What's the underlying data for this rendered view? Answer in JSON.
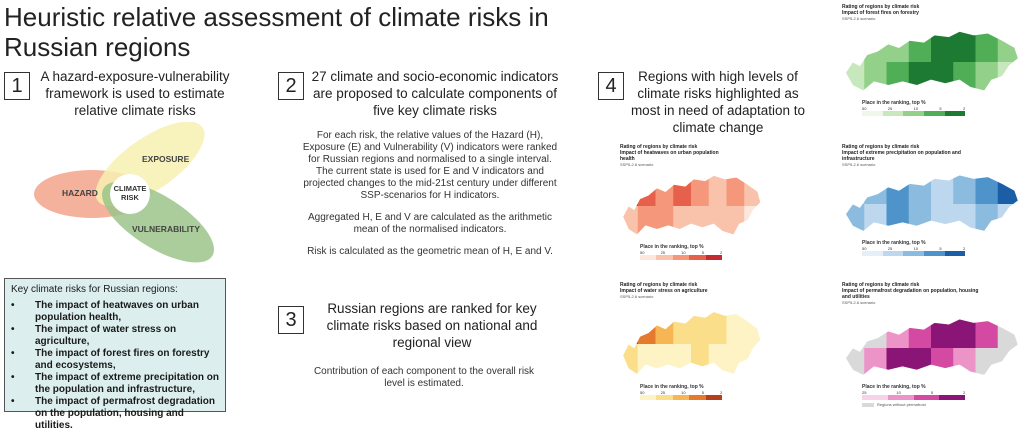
{
  "title": "Heuristic relative assessment of climate risks in Russian regions",
  "steps": [
    {
      "number": "1",
      "heading": "A hazard-exposure-vulnerability framework is used to estimate relative climate risks"
    },
    {
      "number": "2",
      "heading": "27 climate and socio-economic indicators are proposed to calculate components of five key climate risks"
    },
    {
      "number": "3",
      "heading": "Russian regions are ranked for key climate risks based on national and regional view"
    },
    {
      "number": "4",
      "heading": "Regions with high levels of climate risks highlighted as most in need of adaptation to climate change"
    }
  ],
  "step2_paragraphs": [
    "For each risk, the relative values of the Hazard (H), Exposure (E) and Vulnerability (V) indicators were ranked for Russian regions and normalised to a single interval.",
    "The current state is used for E and V indicators and projected changes to the mid-21st century under different SSP-scenarios for H indicators.",
    "Aggregated H, E and V are calculated as the arithmetic mean of the normalised indicators.",
    "Risk is calculated as the geometric mean of H, E and V."
  ],
  "step3_text": "Contribution of each component to the overall risk level is estimated.",
  "venn": {
    "hazard": "HAZARD",
    "exposure": "EXPOSURE",
    "vulnerability": "VULNERABILITY",
    "center": "CLIMATE RISK"
  },
  "key_risks": {
    "heading": "Key climate risks for Russian regions:",
    "items": [
      "The impact of heatwaves on urban population health,",
      "The impact of water stress on agriculture,",
      "The impact of forest fires on forestry and ecosystems,",
      "The impact of extreme precipitation on the population and infrastructure,",
      "The impact of permafrost degradation on the population, housing and utilities."
    ]
  },
  "maps": [
    {
      "title1": "Rating of regions by climate risk",
      "title2": "Impact of forest fires on forestry",
      "scenario": "SSP5-2.6 scenario",
      "legend_title": "Place in the ranking, top %",
      "legend": [
        "50",
        "25",
        "10",
        "5",
        "2"
      ],
      "colors": [
        "#eef7ea",
        "#c6e8bc",
        "#93d08a",
        "#4fae56",
        "#1d7a33"
      ]
    },
    {
      "title1": "Rating of regions by climate risk",
      "title2": "Impact of heatwaves on urban population health",
      "scenario": "SSP5-2.6 scenario",
      "legend_title": "Place in the ranking, top %",
      "legend": [
        "50",
        "25",
        "10",
        "5",
        "2"
      ],
      "colors": [
        "#fde7dc",
        "#f9c3ab",
        "#f4977a",
        "#e6604b",
        "#c42a2f"
      ]
    },
    {
      "title1": "Rating of regions by climate risk",
      "title2": "Impact of extreme precipitation on population and infrastructure",
      "scenario": "SSP5-2.6 scenario",
      "legend_title": "Place in the ranking, top %",
      "legend": [
        "50",
        "25",
        "10",
        "5",
        "2"
      ],
      "colors": [
        "#e4eff9",
        "#bdd7ee",
        "#8bbce0",
        "#4e93c9",
        "#1c5ea6"
      ]
    },
    {
      "title1": "Rating of regions by climate risk",
      "title2": "Impact of water stress on agriculture",
      "scenario": "SSP5-2.6 scenario",
      "legend_title": "Place in the ranking, top %",
      "legend": [
        "50",
        "25",
        "10",
        "5",
        "2"
      ],
      "colors": [
        "#fdf3c4",
        "#fbde8a",
        "#f6b653",
        "#e57a2d",
        "#b43f1d"
      ]
    },
    {
      "title1": "Rating of regions by climate risk",
      "title2": "Impact of permafrost degradation on population, housing and utilities",
      "scenario": "SSP5-2.6 scenario",
      "legend_title": "Place in the ranking, top %",
      "legend": [
        "25",
        "10",
        "5",
        "2"
      ],
      "colors": [
        "#f7d3ea",
        "#ec93c8",
        "#d44aa2",
        "#8a1576"
      ],
      "note": "Regions without permafrost",
      "note_color": "#d9d9d9"
    }
  ]
}
